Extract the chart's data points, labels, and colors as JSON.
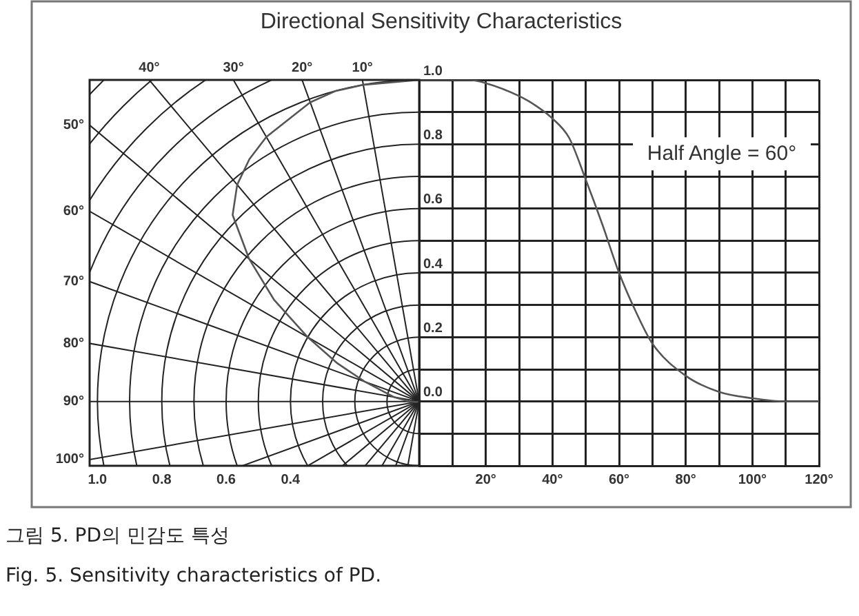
{
  "chart_data": {
    "type": "line",
    "title": "Directional Sensitivity Characteristics",
    "x": [
      0,
      10,
      15,
      20,
      30,
      35,
      40,
      45,
      50,
      55,
      60,
      65,
      70,
      80,
      90,
      100,
      110,
      120
    ],
    "series": [
      {
        "color": "#555555",
        "values": [
          1.0,
          1.0,
          1.0,
          0.99,
          0.95,
          0.92,
          0.88,
          0.82,
          0.69,
          0.55,
          0.4,
          0.28,
          0.18,
          0.08,
          0.03,
          0.01,
          0.0,
          0.0
        ]
      }
    ],
    "xlim": [
      0,
      120
    ],
    "xticks": [
      {
        "value": 0,
        "label": null
      },
      {
        "value": 10,
        "label": null
      },
      {
        "value": 20,
        "label": "20°"
      },
      {
        "value": 30,
        "label": null
      },
      {
        "value": 40,
        "label": "40°"
      },
      {
        "value": 50,
        "label": null
      },
      {
        "value": 60,
        "label": "60°"
      },
      {
        "value": 70,
        "label": null
      },
      {
        "value": 80,
        "label": "80°"
      },
      {
        "value": 90,
        "label": null
      },
      {
        "value": 100,
        "label": "100°"
      },
      {
        "value": 110,
        "label": null
      },
      {
        "value": 120,
        "label": "120°"
      }
    ],
    "ylim": [
      -0.2,
      1.0
    ],
    "yticks": [
      {
        "value": -0.2,
        "label": null
      },
      {
        "value": -0.1,
        "label": null
      },
      {
        "value": 0,
        "label": "0.0"
      },
      {
        "value": 0.1,
        "label": null
      },
      {
        "value": 0.2,
        "label": "0.2"
      },
      {
        "value": 0.3,
        "label": null
      },
      {
        "value": 0.4,
        "label": "0.4"
      },
      {
        "value": 0.5,
        "label": null
      },
      {
        "value": 0.6,
        "label": "0.6"
      },
      {
        "value": 0.7,
        "label": null
      },
      {
        "value": 0.8,
        "label": "0.8"
      },
      {
        "value": 0.9,
        "label": null
      },
      {
        "value": 1.0,
        "label": "1.0"
      }
    ],
    "grid": true,
    "marker": "none",
    "line_style": "solid",
    "annotations": [
      "40°",
      "30°",
      "20°",
      "10°",
      "50°",
      "60°",
      "70°",
      "80°",
      "90°",
      "100°",
      "1.0",
      "0.8",
      "0.6",
      "0.4",
      "Half Angle = 60°",
      "그림 5. PD의 민감도 특성",
      "Fig. 5. Sensitivity characteristics of PD."
    ]
  }
}
